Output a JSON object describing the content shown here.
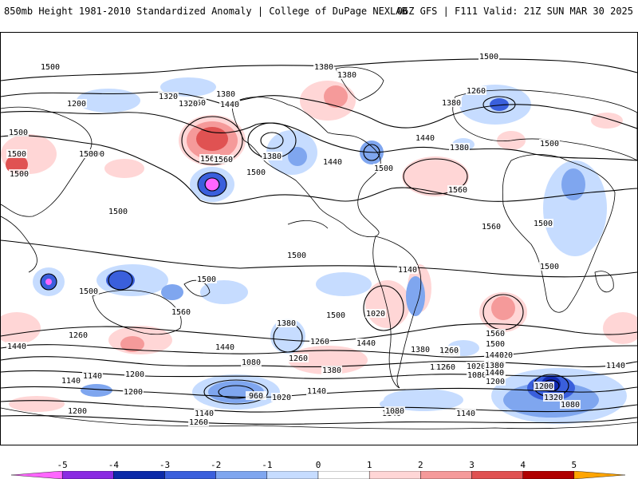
{
  "header": {
    "title_left": "850mb Height 1981-2010 Standardized Anomaly | College of DuPage NEXLAB",
    "title_right": "06Z GFS | F111 Valid: 21Z SUN MAR 30 2025"
  },
  "map": {
    "contour_labels": [
      "1260",
      "1320",
      "1380",
      "1200",
      "1320",
      "1260",
      "1380",
      "1440",
      "1380",
      "1320",
      "1380",
      "1260",
      "1560",
      "1500",
      "1560",
      "1500",
      "1380",
      "1440",
      "1380",
      "1440",
      "1500",
      "1500",
      "1500",
      "1560",
      "1560",
      "1500",
      "1500",
      "1500",
      "1500",
      "1500",
      "1500",
      "1500",
      "1500",
      "1500",
      "1380",
      "1260",
      "1440",
      "1560",
      "1500",
      "1440",
      "1260",
      "1320",
      "1380",
      "1440",
      "1380",
      "1260",
      "1140",
      "1200",
      "1140",
      "1200",
      "1320",
      "1260",
      "1080",
      "960",
      "1020",
      "1140",
      "1200",
      "1200",
      "1140",
      "1260",
      "1140",
      "1080",
      "1020",
      "1080",
      "1200",
      "1140",
      "1440",
      "1380",
      "1320",
      "1140",
      "1260",
      "1560",
      "1500",
      "1440",
      "1380",
      "1320",
      "1200",
      "1080",
      "1020",
      "1140",
      "1500",
      "1500"
    ],
    "colors": {
      "land_outline": "#000000",
      "contour": "#000000",
      "anom_neg1": "#c6dcff",
      "anom_neg2": "#7fa6ef",
      "anom_neg3": "#3a5fdc",
      "anom_neg4": "#1029b0",
      "anom_neg5": "#7a00c8",
      "anom_pos1": "#ffd6d6",
      "anom_pos2": "#f59a9a",
      "anom_pos3": "#e05252"
    }
  },
  "colorbar": {
    "labels": [
      "-5",
      "-4",
      "-3",
      "-2",
      "-1",
      "0",
      "1",
      "2",
      "3",
      "4",
      "5"
    ],
    "colors": [
      "#ff66ff",
      "#8a2be2",
      "#0b2aa8",
      "#3a5fdc",
      "#7fa6ef",
      "#c6dcff",
      "#ffffff",
      "#ffd6d6",
      "#f59a9a",
      "#e05252",
      "#b00000",
      "#ffa500"
    ]
  }
}
